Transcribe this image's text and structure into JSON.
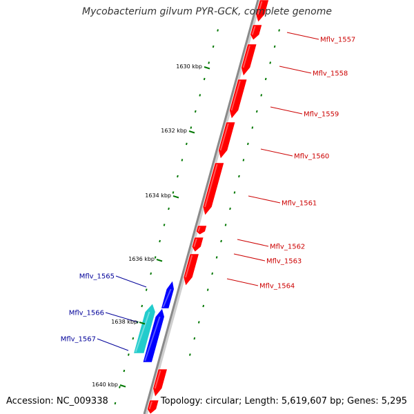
{
  "title": "Mycobacterium gilvum PYR-GCK, complete genome",
  "footer": {
    "accession": "Accession: NC_009338",
    "summary": "Topology: circular; Length: 5,619,607 bp; Genes: 5,295"
  },
  "colors": {
    "backbone": "#8a8a8a",
    "tick": "#007700",
    "forward_gene": "#ff0000",
    "reverse_gene": "#0000ff",
    "reverse_other": "#22cccc",
    "forward_label": "#cc0000",
    "reverse_label": "#000099"
  },
  "ticks": [
    "1630 kbp",
    "1632 kbp",
    "1634 kbp",
    "1636 kbp",
    "1638 kbp",
    "1640 kbp"
  ],
  "genes_forward": [
    "Mflv_1557",
    "Mflv_1558",
    "Mflv_1559",
    "Mflv_1560",
    "Mflv_1561",
    "Mflv_1562",
    "Mflv_1563",
    "Mflv_1564"
  ],
  "genes_reverse": [
    "Mflv_1565",
    "Mflv_1566",
    "Mflv_1567"
  ]
}
